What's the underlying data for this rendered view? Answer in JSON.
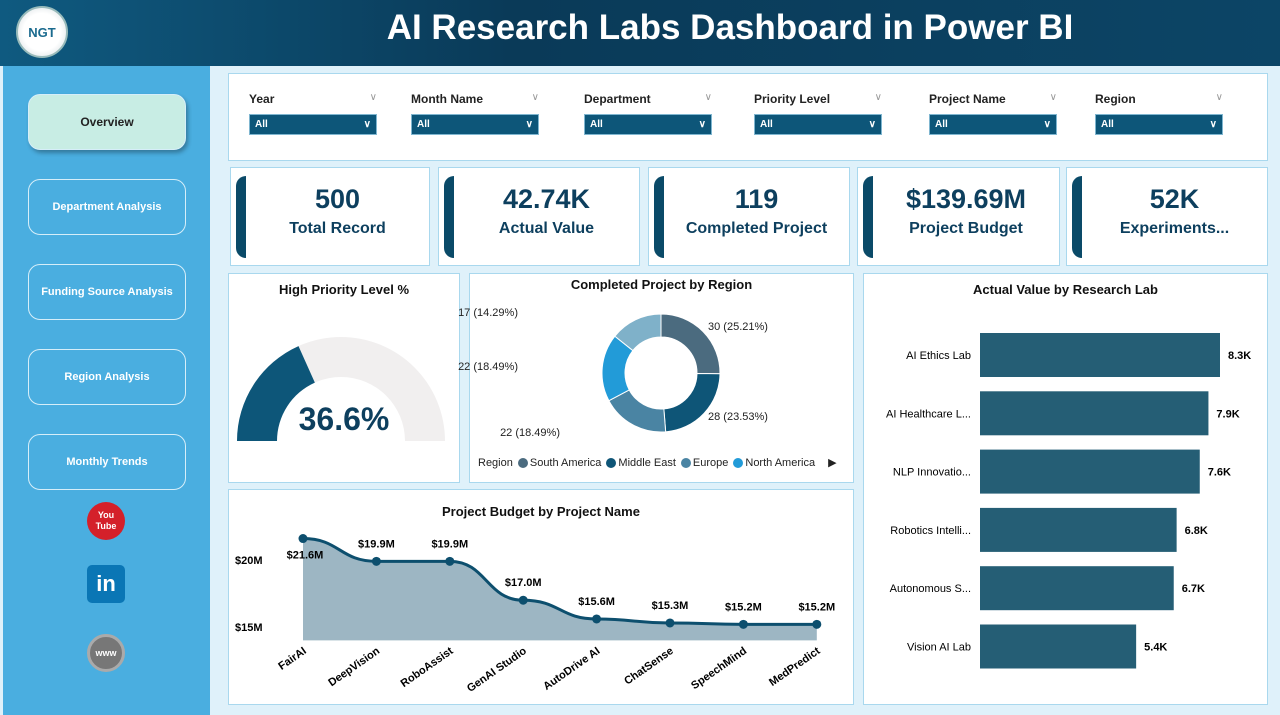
{
  "header": {
    "title": "AI Research Labs Dashboard in Power BI",
    "logo_text": "NGT"
  },
  "sidebar": {
    "items": [
      {
        "label": "Overview",
        "active": true
      },
      {
        "label": "Department Analysis"
      },
      {
        "label": "Funding Source Analysis"
      },
      {
        "label": "Region Analysis"
      },
      {
        "label": "Monthly Trends"
      }
    ],
    "social": [
      {
        "icon": "youtube-icon",
        "label": "You Tube"
      },
      {
        "icon": "linkedin-icon",
        "label": "in"
      },
      {
        "icon": "website-icon",
        "label": "www"
      }
    ]
  },
  "filters": [
    {
      "label": "Year",
      "value": "All"
    },
    {
      "label": "Month Name",
      "value": "All"
    },
    {
      "label": "Department",
      "value": "All"
    },
    {
      "label": "Priority Level",
      "value": "All"
    },
    {
      "label": "Project Name",
      "value": "All"
    },
    {
      "label": "Region",
      "value": "All"
    }
  ],
  "kpis": [
    {
      "value": "500",
      "label": "Total Record"
    },
    {
      "value": "42.74K",
      "label": "Actual Value"
    },
    {
      "value": "119",
      "label": "Completed Project"
    },
    {
      "value": "$139.69M",
      "label": "Project Budget"
    },
    {
      "value": "52K",
      "label": "Experiments..."
    }
  ],
  "colors": {
    "accent": "#0d5679",
    "header": "#0a3a58",
    "sidebar": "#4aaee0"
  },
  "chart_data": [
    {
      "type": "gauge",
      "title": "High Priority Level %",
      "value": 36.6,
      "label": "36.6%",
      "max": 100
    },
    {
      "type": "pie",
      "title": "Completed Project by Region",
      "legend_title": "Region",
      "legend_position": "bottom",
      "slices": [
        {
          "name": "South America",
          "value": 30,
          "label": "30 (25.21%)",
          "color": "#4b6b7f"
        },
        {
          "name": "Middle East",
          "value": 28,
          "label": "28 (23.53%)",
          "color": "#0e5577"
        },
        {
          "name": "Europe",
          "value": 22,
          "label": "22 (18.49%)",
          "color": "#4a84a3"
        },
        {
          "name": "North America",
          "value": 22,
          "label": "22 (18.49%)",
          "color": "#229bd8"
        },
        {
          "name": "",
          "value": 17,
          "label": "17 (14.29%)",
          "color": "#7fb1c9"
        }
      ]
    },
    {
      "type": "area",
      "title": "Project Budget by Project Name",
      "categories": [
        "FairAI",
        "DeepVision",
        "RoboAssist",
        "GenAI Studio",
        "AutoDrive AI",
        "ChatSense",
        "SpeechMind",
        "MedPredict"
      ],
      "values": [
        21.6,
        19.9,
        19.9,
        17.0,
        15.6,
        15.3,
        15.2,
        15.2
      ],
      "data_labels": [
        "$21.6M",
        "$19.9M",
        "$19.9M",
        "$17.0M",
        "$15.6M",
        "$15.3M",
        "$15.2M",
        "$15.2M"
      ],
      "yticks": [
        {
          "value": 15,
          "label": "$15M"
        },
        {
          "value": 20,
          "label": "$20M"
        }
      ],
      "ylim": [
        14,
        22
      ],
      "grid": false
    },
    {
      "type": "bar",
      "orientation": "horizontal",
      "title": "Actual Value by Research Lab",
      "categories": [
        "AI Ethics Lab",
        "AI Healthcare L...",
        "NLP Innovatio...",
        "Robotics Intelli...",
        "Autonomous S...",
        "Vision AI Lab"
      ],
      "values": [
        8.3,
        7.9,
        7.6,
        6.8,
        6.7,
        5.4
      ],
      "data_labels": [
        "8.3K",
        "7.9K",
        "7.6K",
        "6.8K",
        "6.7K",
        "5.4K"
      ],
      "unit": "K",
      "color": "#255e75"
    }
  ]
}
